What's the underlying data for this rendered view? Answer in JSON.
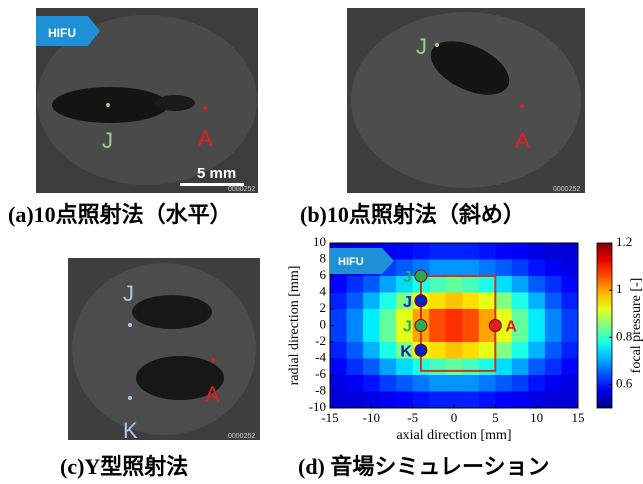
{
  "panel_a": {
    "caption": "(a)10点照射法（水平）",
    "arrow": "HIFU",
    "label_j": "J",
    "label_a": "A",
    "scale": "5 mm",
    "frame": "0000252"
  },
  "panel_b": {
    "caption": "(b)10点照射法（斜め）",
    "label_j": "J",
    "label_a": "A",
    "frame": "0000252"
  },
  "panel_c": {
    "caption": "(c)Y型照射法",
    "label_j": "J",
    "label_k": "K",
    "label_a": "A",
    "frame": "0000252"
  },
  "panel_d": {
    "caption": "(d) 音場シミュレーション"
  },
  "chart_data": {
    "type": "heatmap",
    "annotation": "HIFU",
    "xlabel": "axial direction [mm]",
    "ylabel": "radial direction [mm]",
    "x": [
      -14,
      -12,
      -10,
      -8,
      -6,
      -4,
      -2,
      0,
      2,
      4,
      6,
      8,
      10,
      12,
      14
    ],
    "y": [
      9,
      7,
      5,
      3,
      1,
      -1,
      -3,
      -5,
      -7,
      -9
    ],
    "values": [
      [
        0.56,
        0.56,
        0.57,
        0.58,
        0.59,
        0.6,
        0.61,
        0.61,
        0.61,
        0.6,
        0.59,
        0.58,
        0.57,
        0.56,
        0.56
      ],
      [
        0.57,
        0.58,
        0.6,
        0.63,
        0.65,
        0.67,
        0.69,
        0.69,
        0.69,
        0.67,
        0.65,
        0.63,
        0.6,
        0.58,
        0.57
      ],
      [
        0.59,
        0.62,
        0.65,
        0.7,
        0.74,
        0.78,
        0.81,
        0.83,
        0.81,
        0.78,
        0.74,
        0.7,
        0.65,
        0.62,
        0.59
      ],
      [
        0.61,
        0.65,
        0.71,
        0.78,
        0.85,
        0.92,
        0.96,
        0.98,
        0.96,
        0.92,
        0.85,
        0.78,
        0.71,
        0.65,
        0.61
      ],
      [
        0.63,
        0.68,
        0.75,
        0.83,
        0.92,
        1.0,
        1.06,
        1.08,
        1.06,
        1.0,
        0.92,
        0.83,
        0.75,
        0.68,
        0.63
      ],
      [
        0.63,
        0.68,
        0.75,
        0.83,
        0.92,
        1.0,
        1.06,
        1.08,
        1.06,
        1.0,
        0.92,
        0.83,
        0.75,
        0.68,
        0.63
      ],
      [
        0.61,
        0.65,
        0.71,
        0.78,
        0.85,
        0.92,
        0.96,
        0.98,
        0.96,
        0.92,
        0.85,
        0.78,
        0.71,
        0.65,
        0.61
      ],
      [
        0.59,
        0.62,
        0.65,
        0.7,
        0.74,
        0.78,
        0.81,
        0.83,
        0.81,
        0.78,
        0.74,
        0.7,
        0.65,
        0.62,
        0.59
      ],
      [
        0.57,
        0.58,
        0.6,
        0.63,
        0.65,
        0.67,
        0.69,
        0.69,
        0.69,
        0.67,
        0.65,
        0.63,
        0.6,
        0.58,
        0.57
      ],
      [
        0.56,
        0.56,
        0.57,
        0.58,
        0.59,
        0.6,
        0.61,
        0.61,
        0.61,
        0.6,
        0.59,
        0.58,
        0.57,
        0.56,
        0.56
      ]
    ],
    "xlim": [
      -15,
      15
    ],
    "ylim": [
      -10,
      10
    ],
    "xticks": [
      -15,
      -10,
      -5,
      0,
      5,
      10,
      15
    ],
    "yticks": [
      -10,
      -8,
      -6,
      -4,
      -2,
      0,
      2,
      4,
      6,
      8,
      10
    ],
    "colormap": "jet",
    "colorbar": {
      "label": "focal pressure [-]",
      "lim": [
        0.5,
        1.2
      ],
      "ticks": [
        0.6,
        0.8,
        1,
        1.2
      ]
    },
    "points": [
      {
        "label": "J",
        "x": -4,
        "y": 6,
        "color": "#2fa84f"
      },
      {
        "label": "J",
        "x": -4,
        "y": 3,
        "color": "#1020c0"
      },
      {
        "label": "J",
        "x": -4,
        "y": 0,
        "color": "#2fa84f"
      },
      {
        "label": "K",
        "x": -4,
        "y": -3,
        "color": "#1020c0"
      },
      {
        "label": "A",
        "x": 5,
        "y": 0,
        "color": "#e02020"
      }
    ],
    "region": {
      "x": [
        -4,
        5
      ],
      "y": [
        -5.5,
        6
      ],
      "color": "#d03020"
    }
  }
}
